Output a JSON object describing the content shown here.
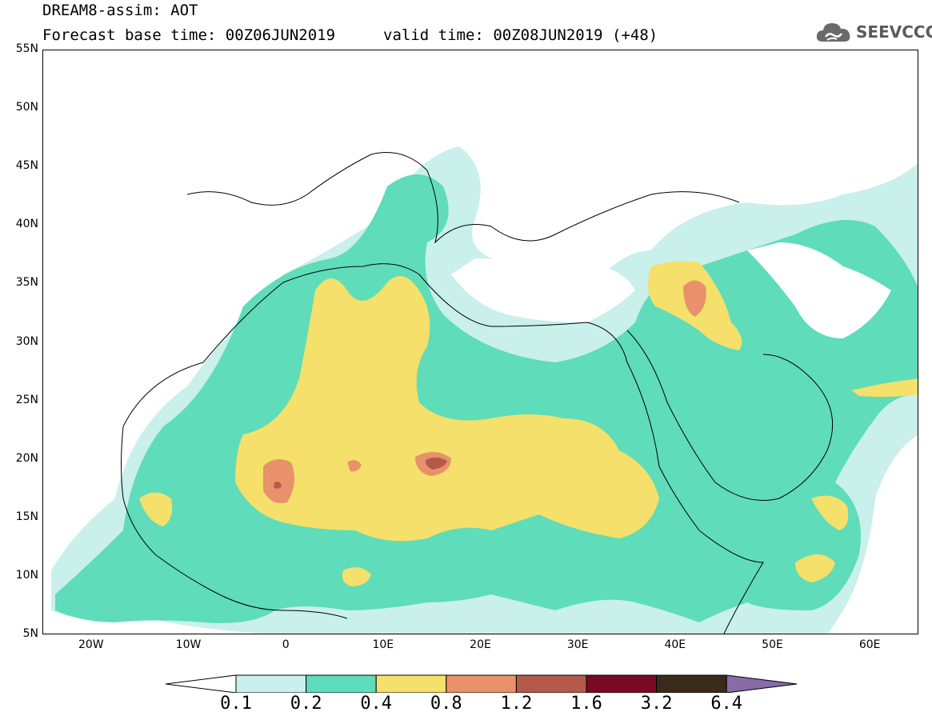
{
  "title": {
    "line1": "DREAM8-assim: AOT",
    "base_time": "Forecast base time: 00Z06JUN2019",
    "valid_time": "valid time: 00Z08JUN2019 (+48)"
  },
  "logo": {
    "text": "SEEVCCC",
    "icon": "cloud-icon"
  },
  "map": {
    "lat_labels": [
      "55N",
      "50N",
      "45N",
      "40N",
      "35N",
      "30N",
      "25N",
      "20N",
      "15N",
      "10N",
      "5N"
    ],
    "lon_labels": [
      "20W",
      "10W",
      "0",
      "10E",
      "20E",
      "30E",
      "40E",
      "50E",
      "60E"
    ],
    "lon_range": [
      -25,
      65
    ],
    "lat_range": [
      5,
      55
    ]
  },
  "colorbar": {
    "labels": [
      "0.1",
      "0.2",
      "0.4",
      "0.8",
      "1.2",
      "1.6",
      "3.2",
      "6.4"
    ],
    "colors": [
      "#ffffff",
      "#c9f0ea",
      "#5fdcb9",
      "#f4e06a",
      "#e8916a",
      "#b45a4a",
      "#7a0a24",
      "#3a2a1a",
      "#8a6aa8"
    ]
  }
}
